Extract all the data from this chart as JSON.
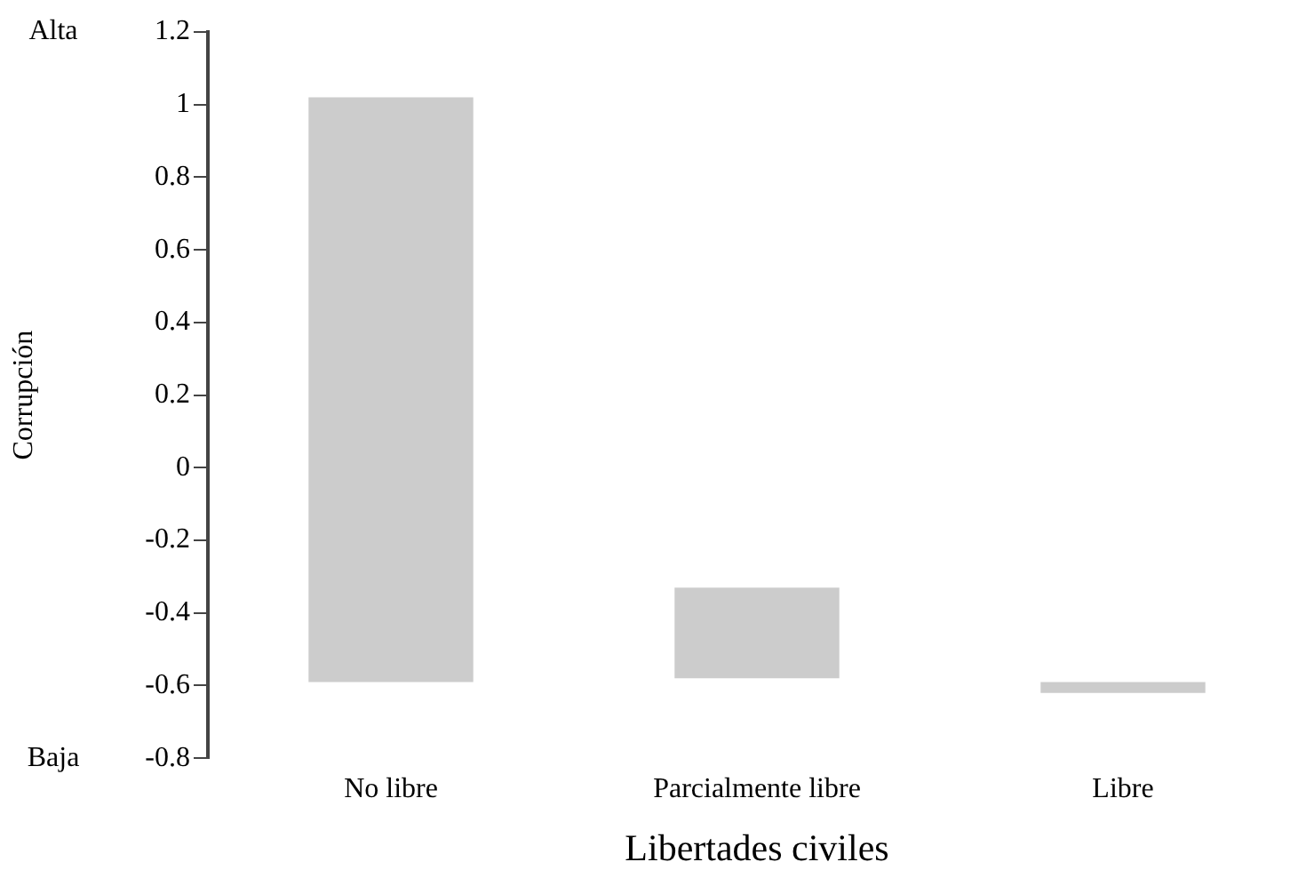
{
  "chart_data": {
    "type": "bar",
    "xlabel": "Libertades civiles",
    "ylabel": "Corrupción",
    "categories": [
      "No libre",
      "Parcialmente libre",
      "Libre"
    ],
    "values": [
      1.61,
      0.25,
      0.03
    ],
    "base": [
      -0.59,
      -0.58,
      -0.62
    ],
    "color": "#cccccc",
    "ylim": [
      -0.8,
      1.2
    ],
    "yticks": [
      -0.8,
      -0.6,
      -0.4,
      -0.2,
      0,
      0.2,
      0.4,
      0.6,
      0.8,
      1,
      1.2
    ],
    "grid": false,
    "legend": false,
    "annotations": [
      "Alta",
      "Baja"
    ]
  }
}
